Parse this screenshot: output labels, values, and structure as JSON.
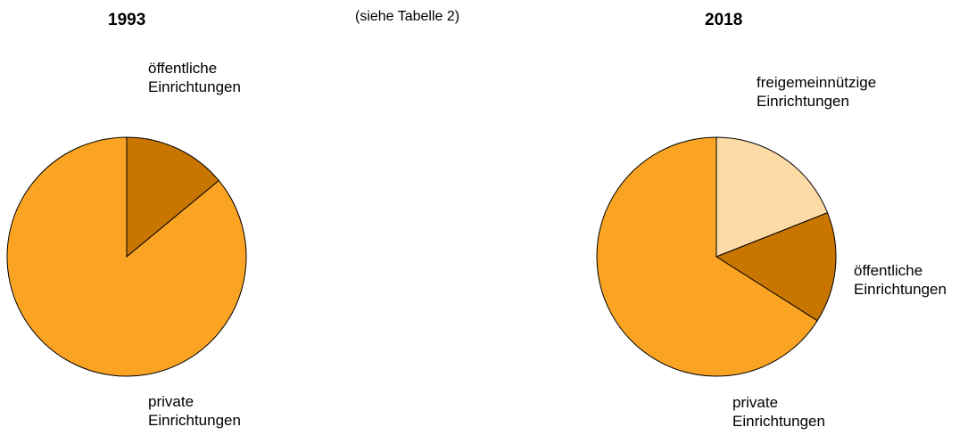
{
  "note": "(siehe Tabelle 2)",
  "chart_data": [
    {
      "type": "pie",
      "title": "1993",
      "slices": [
        {
          "label": [
            "öffentliche",
            "Einrichtungen"
          ],
          "value": 14,
          "color": "#c87600"
        },
        {
          "label": [
            "private",
            "Einrichtungen"
          ],
          "value": 86,
          "color": "#fba424"
        }
      ]
    },
    {
      "type": "pie",
      "title": "2018",
      "slices": [
        {
          "label": [
            "freigemeinnützige",
            "Einrichtungen"
          ],
          "value": 19,
          "color": "#fedba6"
        },
        {
          "label": [
            "öffentliche",
            "Einrichtungen"
          ],
          "value": 15,
          "color": "#c87600"
        },
        {
          "label": [
            "private",
            "Einrichtungen"
          ],
          "value": 66,
          "color": "#fba424"
        }
      ]
    }
  ]
}
